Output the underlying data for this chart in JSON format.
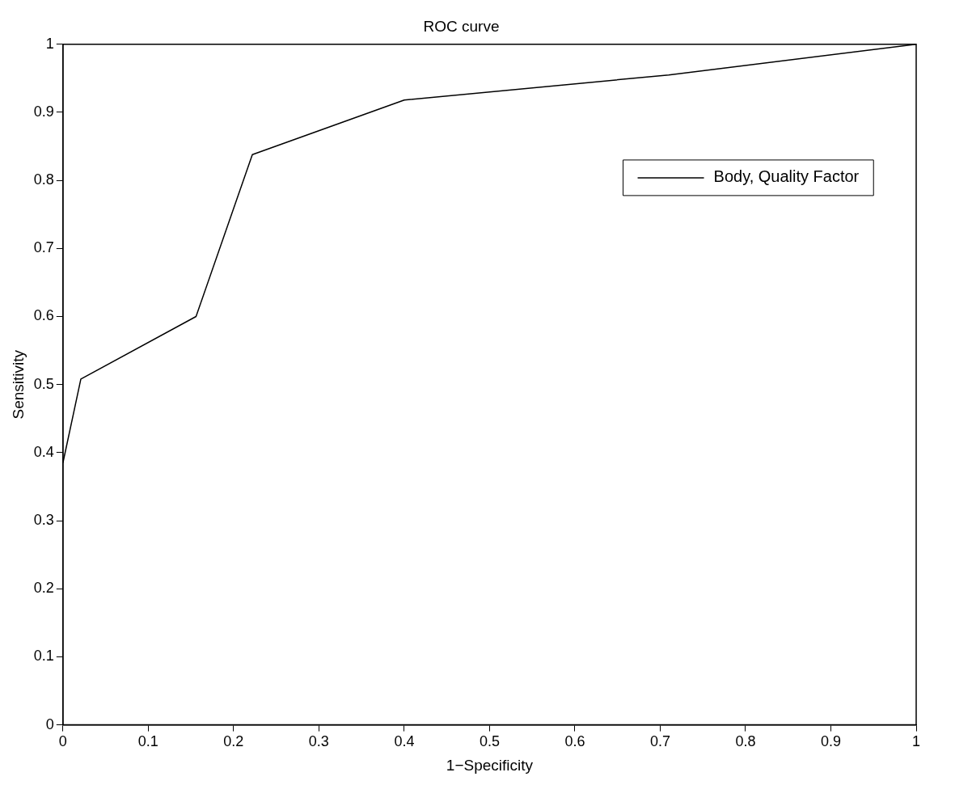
{
  "chart_data": {
    "type": "line",
    "title": "ROC curve",
    "xlabel": "1−Specificity",
    "ylabel": "Sensitivity",
    "series": [
      {
        "name": "Body, Quality Factor",
        "color": "#000000",
        "x": [
          0,
          0.021,
          0.156,
          0.222,
          0.4,
          0.71,
          1
        ],
        "values": [
          0.385,
          0.508,
          0.6,
          0.838,
          0.918,
          0.955,
          1
        ]
      }
    ],
    "xlim": [
      0,
      1
    ],
    "xticks": [
      0,
      0.1,
      0.2,
      0.3,
      0.4,
      0.5,
      0.6,
      0.7,
      0.8,
      0.9,
      1
    ],
    "ylim": [
      0,
      1
    ],
    "yticks": [
      0,
      0.1,
      0.2,
      0.3,
      0.4,
      0.5,
      0.6,
      0.7,
      0.8,
      0.9,
      1
    ],
    "grid": false,
    "legend": "top right",
    "marker": "none",
    "line_style": "solid"
  }
}
